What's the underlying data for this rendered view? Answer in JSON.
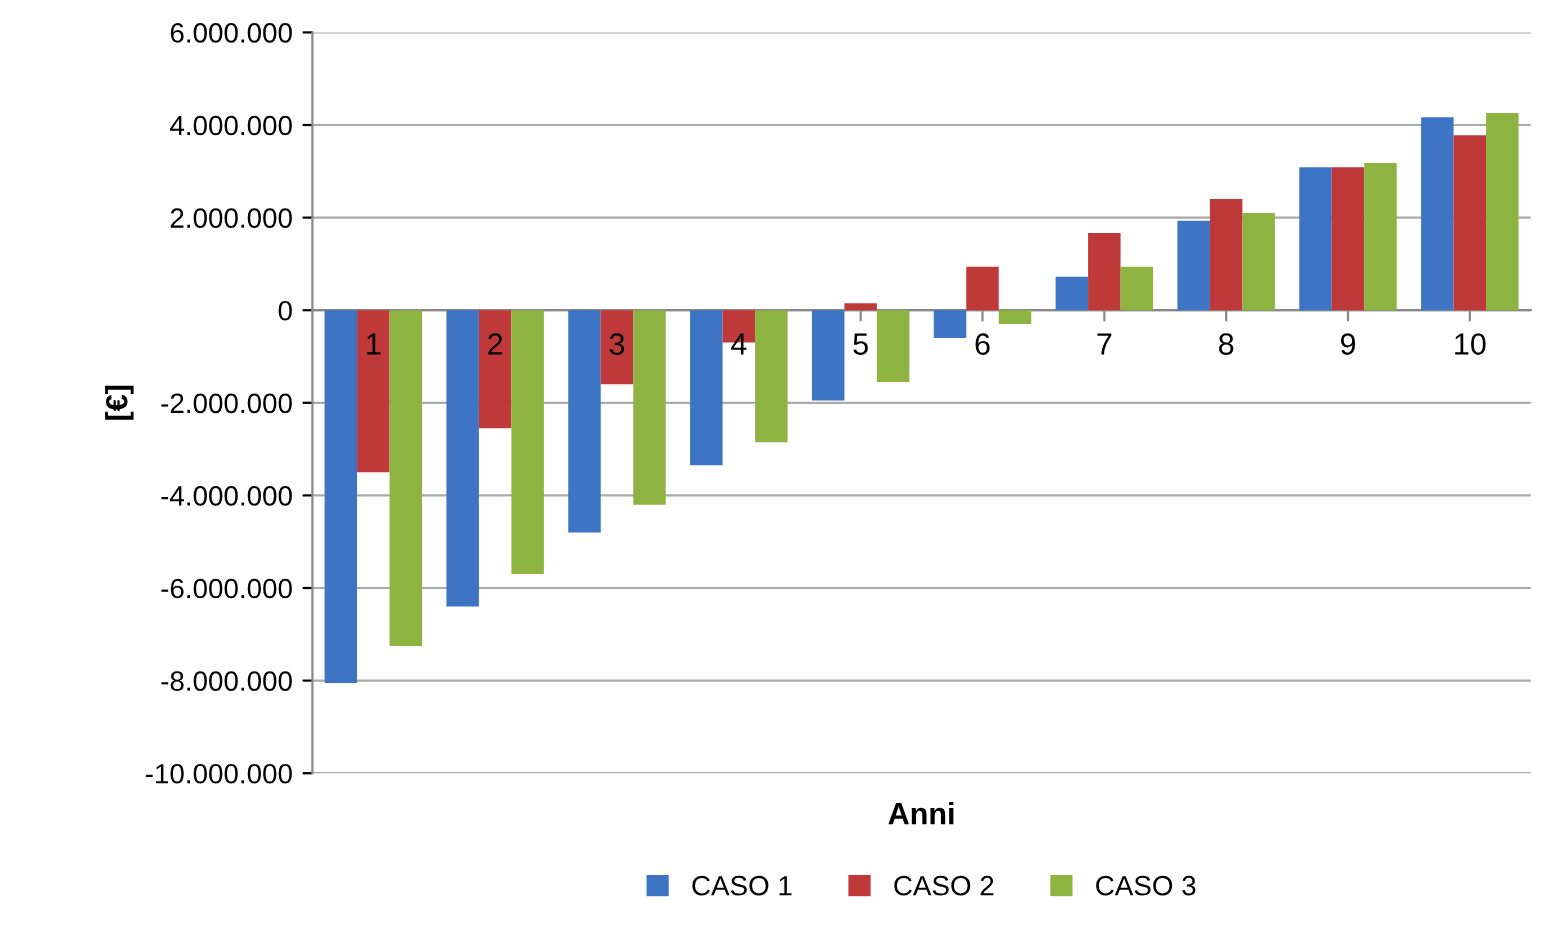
{
  "chart_data": {
    "type": "bar",
    "xlabel": "Anni",
    "ylabel": "[€]",
    "categories": [
      "1",
      "2",
      "3",
      "4",
      "5",
      "6",
      "7",
      "8",
      "9",
      "10"
    ],
    "series": [
      {
        "name": "CASO 1",
        "color": "#3d74c4",
        "values": [
          -8050000,
          -6400000,
          -4800000,
          -3350000,
          -1950000,
          -600000,
          720000,
          1930000,
          3090000,
          4170000
        ]
      },
      {
        "name": "CASO 2",
        "color": "#c0393a",
        "values": [
          -3500000,
          -2550000,
          -1600000,
          -700000,
          150000,
          940000,
          1670000,
          2400000,
          3090000,
          3780000
        ]
      },
      {
        "name": "CASO 3",
        "color": "#8db440",
        "values": [
          -7250000,
          -5700000,
          -4200000,
          -2850000,
          -1550000,
          -300000,
          940000,
          2100000,
          3180000,
          4260000
        ]
      }
    ],
    "ylim": [
      -10000000,
      6000000
    ],
    "yticks": [
      {
        "value": -10000000,
        "label": "-10.000.000"
      },
      {
        "value": -8000000,
        "label": "-8.000.000"
      },
      {
        "value": -6000000,
        "label": "-6.000.000"
      },
      {
        "value": -4000000,
        "label": "-4.000.000"
      },
      {
        "value": -2000000,
        "label": "-2.000.000"
      },
      {
        "value": 0,
        "label": "0"
      },
      {
        "value": 2000000,
        "label": "2.000.000"
      },
      {
        "value": 4000000,
        "label": "4.000.000"
      },
      {
        "value": 6000000,
        "label": "6.000.000"
      }
    ],
    "grid": "y",
    "legend": "bottom"
  }
}
